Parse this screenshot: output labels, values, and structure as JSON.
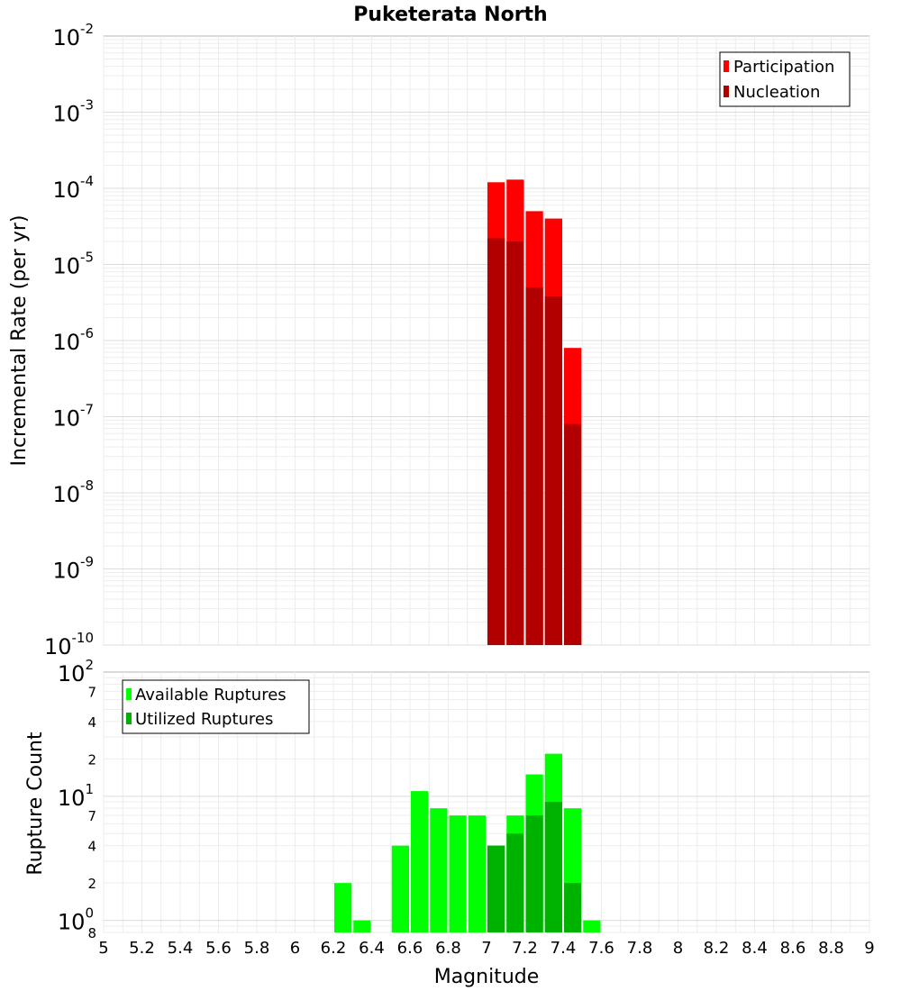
{
  "chart_data": [
    {
      "type": "bar",
      "title": "Puketerata North",
      "ylabel": "Incremental Rate (per yr)",
      "xlabel": "",
      "yscale": "log",
      "ylim": [
        1e-10,
        0.01
      ],
      "xlim": [
        5,
        9
      ],
      "grid": true,
      "legend_position": "top-right",
      "y_tick_exponents": [
        -10,
        -9,
        -8,
        -7,
        -6,
        -5,
        -4,
        -3,
        -2
      ],
      "y_tick_base": "10",
      "bin_width": 0.1,
      "series": [
        {
          "name": "Participation",
          "color": "#ff0000",
          "x": [
            7.05,
            7.15,
            7.25,
            7.35,
            7.45
          ],
          "values": [
            0.00012,
            0.00013,
            5e-05,
            4e-05,
            8e-07
          ]
        },
        {
          "name": "Nucleation",
          "color": "#b20000",
          "x": [
            7.05,
            7.15,
            7.25,
            7.35,
            7.45
          ],
          "values": [
            2.2e-05,
            2e-05,
            5e-06,
            3.8e-06,
            8e-08
          ]
        }
      ]
    },
    {
      "type": "bar",
      "ylabel": "Rupture Count",
      "xlabel": "Magnitude",
      "yscale": "log",
      "ylim": [
        0.8,
        100
      ],
      "xlim": [
        5,
        9
      ],
      "grid": true,
      "legend_position": "top-left",
      "bin_width": 0.1,
      "x_ticks": [
        "5",
        "5.2",
        "5.4",
        "5.6",
        "5.8",
        "6",
        "6.2",
        "6.4",
        "6.6",
        "6.8",
        "7",
        "7.2",
        "7.4",
        "7.6",
        "7.8",
        "8",
        "8.2",
        "8.4",
        "8.6",
        "8.8",
        "9"
      ],
      "y_major_ticks": [
        {
          "base": "10",
          "exp": "2",
          "value": 100
        },
        {
          "base": "10",
          "exp": "1",
          "value": 10
        },
        {
          "base": "10",
          "exp": "0",
          "value": 1
        }
      ],
      "y_minor_ticks": [
        {
          "label": "7",
          "value": 70
        },
        {
          "label": "4",
          "value": 40
        },
        {
          "label": "2",
          "value": 20
        },
        {
          "label": "7",
          "value": 7
        },
        {
          "label": "4",
          "value": 4
        },
        {
          "label": "2",
          "value": 2
        },
        {
          "label": "8",
          "value": 0.8
        }
      ],
      "series": [
        {
          "name": "Available Ruptures",
          "color": "#00ff00",
          "x": [
            6.25,
            6.35,
            6.55,
            6.65,
            6.75,
            6.85,
            6.95,
            7.05,
            7.15,
            7.25,
            7.35,
            7.45,
            7.55
          ],
          "values": [
            2,
            1,
            4,
            11,
            8,
            7,
            7,
            4,
            7,
            15,
            22,
            8,
            1
          ]
        },
        {
          "name": "Utilized Ruptures",
          "color": "#00b200",
          "x": [
            7.05,
            7.15,
            7.25,
            7.35,
            7.45
          ],
          "values": [
            4,
            5,
            7,
            9,
            2
          ]
        }
      ]
    }
  ]
}
